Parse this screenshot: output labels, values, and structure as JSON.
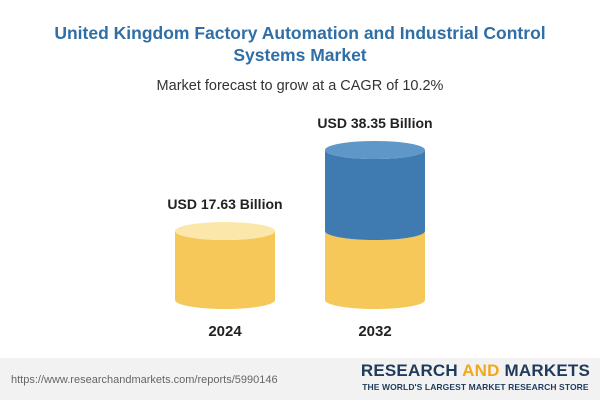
{
  "title": "United Kingdom Factory Automation and Industrial Control Systems Market",
  "subtitle": "Market forecast to grow at a CAGR of 10.2%",
  "chart_data": {
    "type": "bar",
    "categories": [
      "2024",
      "2032"
    ],
    "values": [
      17.63,
      38.35
    ],
    "value_labels": [
      "USD 17.63 Billion",
      "USD 38.35 Billion"
    ],
    "base_value": 17.63,
    "cagr": "10.2%",
    "colors": {
      "base": "#f6c85a",
      "base_top": "#fbe7a9",
      "growth": "#3f7bb1",
      "growth_top": "#5f97c8"
    }
  },
  "footer": {
    "url": "https://www.researchandmarkets.com/reports/5990146",
    "brand_part1": "RESEARCH ",
    "brand_part2": "AND",
    "brand_part3": " MARKETS",
    "tagline": "THE WORLD'S LARGEST MARKET RESEARCH STORE"
  }
}
